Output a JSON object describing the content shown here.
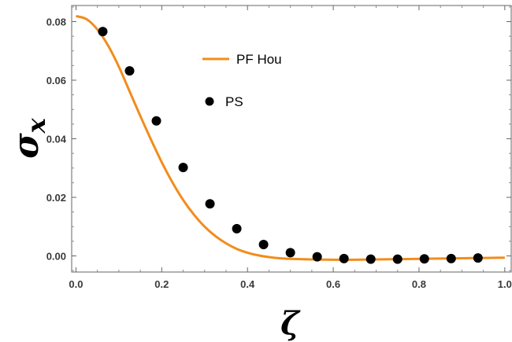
{
  "chart_data": {
    "type": "line",
    "xlabel": "ζ",
    "ylabel": "σx",
    "ylabel_main": "σ",
    "ylabel_sub": "x",
    "xlim": [
      -0.01,
      1.015
    ],
    "ylim": [
      -0.0055,
      0.0855
    ],
    "x_ticks": [
      0.0,
      0.2,
      0.4,
      0.6,
      0.8,
      1.0
    ],
    "x_tick_labels": [
      "0.0",
      "0.2",
      "0.4",
      "0.6",
      "0.8",
      "1.0"
    ],
    "y_ticks": [
      0.0,
      0.02,
      0.04,
      0.06,
      0.08
    ],
    "y_tick_labels": [
      "0.00",
      "0.02",
      "0.04",
      "0.06",
      "0.08"
    ],
    "grid": false,
    "legend_position": "upper-middle",
    "series": [
      {
        "name": "PF Hou",
        "style": "line",
        "color": "#f28c1c",
        "x": [
          0.0,
          0.025,
          0.05,
          0.075,
          0.1,
          0.125,
          0.15,
          0.175,
          0.2,
          0.225,
          0.25,
          0.275,
          0.3,
          0.325,
          0.35,
          0.375,
          0.4,
          0.425,
          0.45,
          0.475,
          0.5,
          0.55,
          0.6,
          0.65,
          0.7,
          0.75,
          0.8,
          0.85,
          0.9,
          0.95,
          1.0
        ],
        "y": [
          0.0819,
          0.0808,
          0.0773,
          0.0718,
          0.0646,
          0.0562,
          0.0478,
          0.0397,
          0.032,
          0.0251,
          0.0191,
          0.0141,
          0.01,
          0.0068,
          0.0043,
          0.0024,
          0.0011,
          0.0002,
          -0.0004,
          -0.0008,
          -0.001,
          -0.0012,
          -0.0013,
          -0.0013,
          -0.0012,
          -0.0011,
          -0.001,
          -0.0009,
          -0.0008,
          -0.0007,
          -0.0006
        ]
      },
      {
        "name": "PS",
        "style": "markers",
        "color": "#000000",
        "x": [
          0.0625,
          0.125,
          0.1875,
          0.25,
          0.3125,
          0.375,
          0.4375,
          0.5,
          0.5625,
          0.625,
          0.6875,
          0.75,
          0.8125,
          0.875,
          0.9375
        ],
        "y": [
          0.0766,
          0.0632,
          0.0461,
          0.0302,
          0.0178,
          0.0093,
          0.0039,
          0.0011,
          -0.0003,
          -0.0009,
          -0.0011,
          -0.0011,
          -0.001,
          -0.0009,
          -0.0007
        ]
      }
    ]
  }
}
